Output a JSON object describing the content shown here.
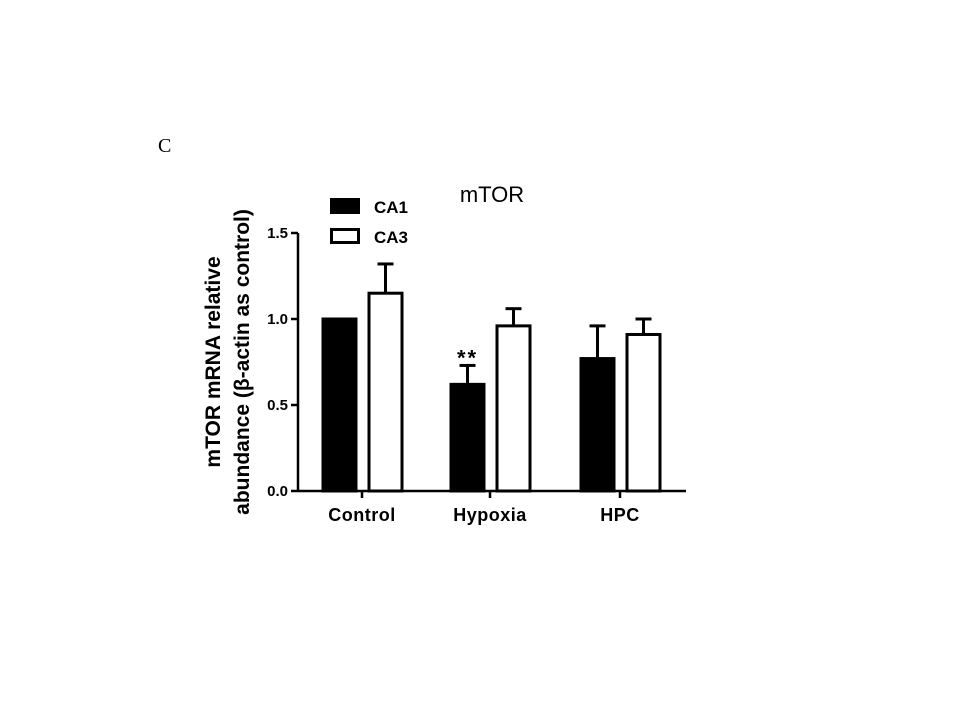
{
  "panel_label": "C",
  "chart_data": {
    "type": "bar",
    "title": "mTOR",
    "ylabel_line1": "mTOR mRNA relative",
    "ylabel_line2": "abundance (β-actin as control)",
    "xlabel": "",
    "categories": [
      "Control",
      "Hypoxia",
      "HPC"
    ],
    "ylim": [
      0,
      1.5
    ],
    "yticks": [
      0.0,
      0.5,
      1.0,
      1.5
    ],
    "ytick_labels": [
      "0.0",
      "0.5",
      "1.0",
      "1.5"
    ],
    "grid": false,
    "legend_position": "top-left",
    "series": [
      {
        "name": "CA1",
        "values": [
          1.0,
          0.62,
          0.77
        ],
        "errors": [
          0.0,
          0.11,
          0.19
        ],
        "fill": "#000000"
      },
      {
        "name": "CA3",
        "values": [
          1.15,
          0.96,
          0.91
        ],
        "errors": [
          0.17,
          0.1,
          0.09
        ],
        "fill": "#ffffff"
      }
    ],
    "annotations": [
      {
        "text": "**",
        "category": 1,
        "series": 0
      }
    ]
  }
}
